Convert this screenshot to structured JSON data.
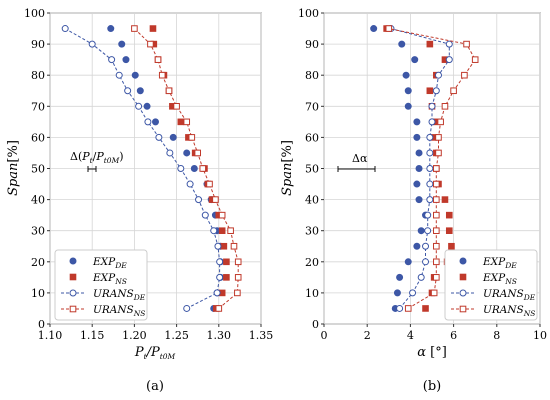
{
  "colors": {
    "de": "#3d57a6",
    "ns": "#c0392b",
    "grid": "#d6d6d6",
    "axis": "#333333"
  },
  "chart_data": [
    {
      "type": "scatter",
      "panel_label": "(a)",
      "xlabel": "Pt/Pt0M",
      "ylabel": "Span[%]",
      "xlim": [
        1.1,
        1.35
      ],
      "ylim": [
        0,
        100
      ],
      "xticks": [
        "1.10",
        "1.15",
        "1.20",
        "1.25",
        "1.30",
        "1.35"
      ],
      "yticks": [
        "0",
        "10",
        "20",
        "30",
        "40",
        "50",
        "60",
        "70",
        "80",
        "90",
        "100"
      ],
      "grid": true,
      "legend_position": "bottom-left",
      "annotation": "Δ(Pt/Pt0M)",
      "series": [
        {
          "name": "EXP_DE",
          "marker": "filled-circle",
          "points": [
            [
              1.294,
              5
            ],
            [
              1.298,
              10
            ],
            [
              1.302,
              15
            ],
            [
              1.302,
              20
            ],
            [
              1.302,
              25
            ],
            [
              1.298,
              30
            ],
            [
              1.296,
              35
            ],
            [
              1.291,
              40
            ],
            [
              1.286,
              45
            ],
            [
              1.271,
              50
            ],
            [
              1.262,
              55
            ],
            [
              1.246,
              60
            ],
            [
              1.225,
              65
            ],
            [
              1.215,
              70
            ],
            [
              1.207,
              75
            ],
            [
              1.201,
              80
            ],
            [
              1.19,
              85
            ],
            [
              1.185,
              90
            ],
            [
              1.172,
              95
            ]
          ]
        },
        {
          "name": "EXP_NS",
          "marker": "filled-square",
          "points": [
            [
              1.297,
              5
            ],
            [
              1.304,
              10
            ],
            [
              1.309,
              15
            ],
            [
              1.309,
              20
            ],
            [
              1.306,
              25
            ],
            [
              1.304,
              30
            ],
            [
              1.3,
              35
            ],
            [
              1.292,
              40
            ],
            [
              1.287,
              45
            ],
            [
              1.283,
              50
            ],
            [
              1.272,
              55
            ],
            [
              1.264,
              60
            ],
            [
              1.255,
              65
            ],
            [
              1.245,
              70
            ],
            [
              1.241,
              75
            ],
            [
              1.235,
              80
            ],
            [
              1.228,
              85
            ],
            [
              1.223,
              90
            ],
            [
              1.222,
              95
            ]
          ]
        },
        {
          "name": "URANS_DE",
          "marker": "open-circle",
          "line": "dashed",
          "points": [
            [
              1.262,
              5
            ],
            [
              1.298,
              10
            ],
            [
              1.301,
              15
            ],
            [
              1.301,
              20
            ],
            [
              1.299,
              25
            ],
            [
              1.294,
              30
            ],
            [
              1.284,
              35
            ],
            [
              1.276,
              40
            ],
            [
              1.266,
              45
            ],
            [
              1.255,
              50
            ],
            [
              1.242,
              55
            ],
            [
              1.229,
              60
            ],
            [
              1.216,
              65
            ],
            [
              1.205,
              70
            ],
            [
              1.192,
              75
            ],
            [
              1.182,
              80
            ],
            [
              1.173,
              85
            ],
            [
              1.15,
              90
            ],
            [
              1.118,
              95
            ]
          ]
        },
        {
          "name": "URANS_NS",
          "marker": "open-square",
          "line": "dashed",
          "points": [
            [
              1.3,
              5
            ],
            [
              1.322,
              10
            ],
            [
              1.323,
              15
            ],
            [
              1.323,
              20
            ],
            [
              1.318,
              25
            ],
            [
              1.314,
              30
            ],
            [
              1.304,
              35
            ],
            [
              1.296,
              40
            ],
            [
              1.289,
              45
            ],
            [
              1.281,
              50
            ],
            [
              1.275,
              55
            ],
            [
              1.268,
              60
            ],
            [
              1.262,
              65
            ],
            [
              1.25,
              70
            ],
            [
              1.241,
              75
            ],
            [
              1.233,
              80
            ],
            [
              1.228,
              85
            ],
            [
              1.219,
              90
            ],
            [
              1.2,
              95
            ]
          ]
        }
      ]
    },
    {
      "type": "scatter",
      "panel_label": "(b)",
      "xlabel": "α [°]",
      "ylabel": "Span[%]",
      "xlim": [
        0,
        10
      ],
      "ylim": [
        0,
        100
      ],
      "xticks": [
        "0",
        "2",
        "4",
        "6",
        "8",
        "10"
      ],
      "yticks": [
        "0",
        "10",
        "20",
        "30",
        "40",
        "50",
        "60",
        "70",
        "80",
        "90",
        "100"
      ],
      "grid": true,
      "legend_position": "bottom-right",
      "annotation": "Δα",
      "series": [
        {
          "name": "EXP_DE",
          "marker": "filled-circle",
          "points": [
            [
              3.3,
              5
            ],
            [
              3.4,
              10
            ],
            [
              3.5,
              15
            ],
            [
              3.9,
              20
            ],
            [
              4.3,
              25
            ],
            [
              4.5,
              30
            ],
            [
              4.7,
              35
            ],
            [
              4.4,
              40
            ],
            [
              4.3,
              45
            ],
            [
              4.4,
              50
            ],
            [
              4.4,
              55
            ],
            [
              4.3,
              60
            ],
            [
              4.3,
              65
            ],
            [
              3.9,
              70
            ],
            [
              3.9,
              75
            ],
            [
              3.8,
              80
            ],
            [
              4.2,
              85
            ],
            [
              3.6,
              90
            ],
            [
              2.3,
              95
            ]
          ]
        },
        {
          "name": "EXP_NS",
          "marker": "filled-square",
          "points": [
            [
              4.7,
              5
            ],
            [
              5.0,
              10
            ],
            [
              5.1,
              15
            ],
            [
              5.7,
              20
            ],
            [
              5.9,
              25
            ],
            [
              5.8,
              30
            ],
            [
              5.8,
              35
            ],
            [
              5.6,
              40
            ],
            [
              5.3,
              45
            ],
            [
              5.2,
              50
            ],
            [
              5.2,
              55
            ],
            [
              5.1,
              60
            ],
            [
              5.1,
              65
            ],
            [
              5.0,
              70
            ],
            [
              4.9,
              75
            ],
            [
              5.2,
              80
            ],
            [
              5.6,
              85
            ],
            [
              4.9,
              90
            ],
            [
              2.9,
              95
            ]
          ]
        },
        {
          "name": "URANS_DE",
          "marker": "open-circle",
          "line": "dashed",
          "points": [
            [
              3.5,
              5
            ],
            [
              4.1,
              10
            ],
            [
              4.5,
              15
            ],
            [
              4.7,
              20
            ],
            [
              4.7,
              25
            ],
            [
              4.8,
              30
            ],
            [
              4.8,
              35
            ],
            [
              4.9,
              40
            ],
            [
              4.9,
              45
            ],
            [
              4.9,
              50
            ],
            [
              4.9,
              55
            ],
            [
              4.9,
              60
            ],
            [
              5.0,
              65
            ],
            [
              5.0,
              70
            ],
            [
              5.2,
              75
            ],
            [
              5.3,
              80
            ],
            [
              5.8,
              85
            ],
            [
              5.8,
              90
            ],
            [
              3.1,
              95
            ]
          ]
        },
        {
          "name": "URANS_NS",
          "marker": "open-square",
          "line": "dashed",
          "points": [
            [
              3.9,
              5
            ],
            [
              5.1,
              10
            ],
            [
              5.2,
              15
            ],
            [
              5.2,
              20
            ],
            [
              5.2,
              25
            ],
            [
              5.2,
              30
            ],
            [
              5.2,
              35
            ],
            [
              5.2,
              40
            ],
            [
              5.2,
              45
            ],
            [
              5.2,
              50
            ],
            [
              5.3,
              55
            ],
            [
              5.3,
              60
            ],
            [
              5.4,
              65
            ],
            [
              5.6,
              70
            ],
            [
              6.0,
              75
            ],
            [
              6.5,
              80
            ],
            [
              7.0,
              85
            ],
            [
              6.6,
              90
            ],
            [
              3.0,
              95
            ]
          ]
        }
      ]
    }
  ]
}
